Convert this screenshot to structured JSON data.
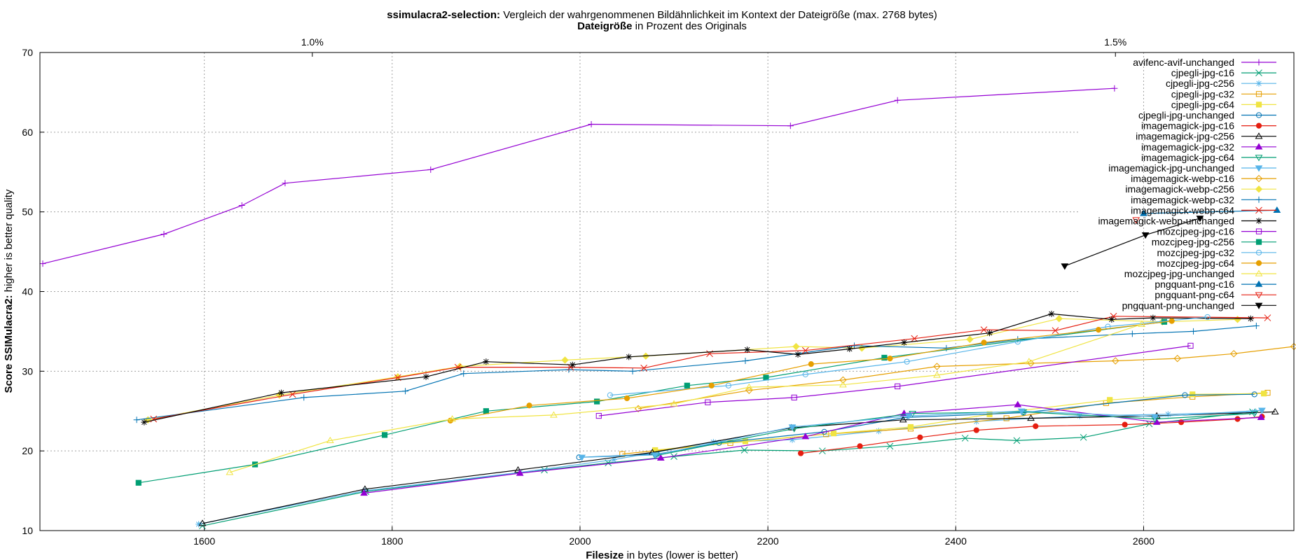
{
  "chart_data": {
    "type": "line",
    "title_bold": "ssimulacra2-selection:",
    "title_rest": " Vergleich der wahrgenommenen Bildähnlichkeit im Kontext der Dateigröße (max. 2768 bytes)",
    "subtitle_bold": "Dateigröße",
    "subtitle_rest": " in Prozent des Originals",
    "xlabel_bold": "Filesize",
    "xlabel_rest": " in bytes (lower is better)",
    "ylabel_bold": "Score SSIMulacra2:",
    "ylabel_rest": " higher is better quality",
    "xlim": [
      1425,
      2760
    ],
    "ylim": [
      10,
      70
    ],
    "xticks": [
      1600,
      1800,
      2000,
      2200,
      2400,
      2600
    ],
    "yticks": [
      10,
      20,
      30,
      40,
      50,
      60,
      70
    ],
    "x2ticks": [
      {
        "x": 1715,
        "label": "1.0%"
      },
      {
        "x": 2570,
        "label": "1.5%"
      }
    ],
    "grid": true,
    "legend_position": "top-right",
    "series": [
      {
        "name": "avifenc-avif-unchanged",
        "color": "#9400d3",
        "marker": "plus",
        "points": [
          [
            1428,
            43.5
          ],
          [
            1557,
            47.2
          ],
          [
            1640,
            50.8
          ],
          [
            1686,
            53.6
          ],
          [
            1841,
            55.3
          ],
          [
            2012,
            61.0
          ],
          [
            2224,
            60.8
          ],
          [
            2338,
            64.0
          ],
          [
            2569,
            65.5
          ]
        ]
      },
      {
        "name": "cjpegli-jpg-c16",
        "color": "#009e73",
        "marker": "x",
        "points": [
          [
            1598,
            10.6
          ],
          [
            1772,
            14.9
          ],
          [
            1962,
            17.6
          ],
          [
            2030,
            18.5
          ],
          [
            2100,
            19.3
          ],
          [
            2175,
            20.1
          ],
          [
            2258,
            20.0
          ],
          [
            2330,
            20.6
          ],
          [
            2410,
            21.6
          ],
          [
            2465,
            21.3
          ],
          [
            2536,
            21.7
          ],
          [
            2606,
            23.4
          ],
          [
            2716,
            24.9
          ]
        ]
      },
      {
        "name": "cjpegli-jpg-c256",
        "color": "#56b4e9",
        "marker": "star",
        "points": [
          [
            1594,
            10.8
          ],
          [
            1771,
            15.0
          ],
          [
            1936,
            17.3
          ],
          [
            2036,
            18.9
          ],
          [
            2142,
            21.1
          ],
          [
            2226,
            21.4
          ],
          [
            2318,
            22.5
          ],
          [
            2422,
            23.7
          ],
          [
            2532,
            24.4
          ],
          [
            2626,
            24.6
          ],
          [
            2718,
            24.9
          ]
        ]
      },
      {
        "name": "cjpegli-jpg-c32",
        "color": "#e69f00",
        "marker": "square-open",
        "points": [
          [
            2045,
            19.6
          ],
          [
            2160,
            21.0
          ],
          [
            2262,
            22.1
          ],
          [
            2352,
            22.8
          ],
          [
            2454,
            24.1
          ],
          [
            2560,
            26.0
          ],
          [
            2652,
            26.8
          ],
          [
            2732,
            27.3
          ]
        ]
      },
      {
        "name": "cjpegli-jpg-c64",
        "color": "#f0e442",
        "marker": "square",
        "points": [
          [
            2080,
            20.1
          ],
          [
            2176,
            21.2
          ],
          [
            2270,
            22.2
          ],
          [
            2352,
            23.0
          ],
          [
            2436,
            24.6
          ],
          [
            2564,
            26.4
          ],
          [
            2652,
            27.1
          ],
          [
            2728,
            27.2
          ]
        ]
      },
      {
        "name": "cjpegli-jpg-unchanged",
        "color": "#0072b2",
        "marker": "circle-open",
        "points": [
          [
            1999,
            19.2
          ],
          [
            2082,
            19.6
          ],
          [
            2148,
            21.0
          ],
          [
            2260,
            22.4
          ],
          [
            2346,
            24.2
          ],
          [
            2472,
            24.8
          ],
          [
            2644,
            27.0
          ],
          [
            2718,
            27.1
          ]
        ]
      },
      {
        "name": "imagemagick-jpg-c16",
        "color": "#e51e10",
        "marker": "circle",
        "points": [
          [
            2235,
            19.7
          ],
          [
            2298,
            20.6
          ],
          [
            2362,
            21.7
          ],
          [
            2422,
            22.6
          ],
          [
            2485,
            23.1
          ],
          [
            2580,
            23.3
          ],
          [
            2640,
            23.6
          ],
          [
            2700,
            24.0
          ],
          [
            2726,
            24.3
          ]
        ]
      },
      {
        "name": "imagemagick-jpg-c256",
        "color": "#000000",
        "marker": "tri-open",
        "points": [
          [
            1598,
            10.9
          ],
          [
            1771,
            15.2
          ],
          [
            1934,
            17.6
          ],
          [
            2077,
            19.8
          ],
          [
            2225,
            22.9
          ],
          [
            2344,
            23.9
          ],
          [
            2480,
            24.1
          ],
          [
            2614,
            24.4
          ],
          [
            2740,
            24.9
          ]
        ]
      },
      {
        "name": "imagemagick-jpg-c32",
        "color": "#9400d3",
        "marker": "tri",
        "points": [
          [
            1770,
            14.7
          ],
          [
            1936,
            17.2
          ],
          [
            2086,
            19.1
          ],
          [
            2240,
            21.8
          ],
          [
            2345,
            24.7
          ],
          [
            2466,
            25.8
          ],
          [
            2614,
            23.6
          ],
          [
            2725,
            24.2
          ]
        ]
      },
      {
        "name": "imagemagick-jpg-c64",
        "color": "#009e73",
        "marker": "tri-down-open",
        "points": [
          [
            2080,
            19.4
          ],
          [
            2228,
            22.8
          ],
          [
            2354,
            24.7
          ],
          [
            2472,
            24.9
          ],
          [
            2612,
            24.0
          ],
          [
            2718,
            24.7
          ]
        ]
      },
      {
        "name": "imagemagick-jpg-unchanged",
        "color": "#56b4e9",
        "marker": "tri-down",
        "points": [
          [
            2002,
            19.2
          ],
          [
            2080,
            19.5
          ],
          [
            2226,
            23.0
          ],
          [
            2350,
            24.4
          ],
          [
            2470,
            25.0
          ],
          [
            2612,
            24.3
          ],
          [
            2726,
            25.1
          ]
        ]
      },
      {
        "name": "imagemagick-webp-c16",
        "color": "#e69f00",
        "marker": "diamond-open",
        "points": [
          [
            2062,
            25.3
          ],
          [
            2180,
            27.6
          ],
          [
            2280,
            28.9
          ],
          [
            2380,
            30.6
          ],
          [
            2480,
            31.0
          ],
          [
            2570,
            31.3
          ],
          [
            2636,
            31.6
          ],
          [
            2696,
            32.2
          ],
          [
            2760,
            33.1
          ]
        ]
      },
      {
        "name": "imagemagick-webp-c256",
        "color": "#f0e442",
        "marker": "diamond",
        "points": [
          [
            1540,
            23.9
          ],
          [
            1680,
            27.0
          ],
          [
            1806,
            29.3
          ],
          [
            1872,
            30.6
          ],
          [
            1984,
            31.4
          ],
          [
            2070,
            31.9
          ],
          [
            2230,
            33.1
          ],
          [
            2300,
            32.9
          ],
          [
            2415,
            34.0
          ],
          [
            2510,
            36.6
          ],
          [
            2620,
            36.2
          ],
          [
            2700,
            36.5
          ]
        ]
      },
      {
        "name": "imagemagick-webp-c32",
        "color": "#0072b2",
        "marker": "plus",
        "points": [
          [
            1528,
            23.9
          ],
          [
            1706,
            26.7
          ],
          [
            1814,
            27.5
          ],
          [
            1876,
            29.7
          ],
          [
            1988,
            30.2
          ],
          [
            2056,
            30.0
          ],
          [
            2176,
            31.3
          ],
          [
            2292,
            33.2
          ],
          [
            2390,
            32.9
          ],
          [
            2466,
            34.0
          ],
          [
            2588,
            34.7
          ],
          [
            2653,
            35.0
          ],
          [
            2720,
            35.7
          ]
        ]
      },
      {
        "name": "imagemagick-webp-c64",
        "color": "#e51e10",
        "marker": "x",
        "points": [
          [
            1546,
            24.0
          ],
          [
            1694,
            27.1
          ],
          [
            1806,
            29.2
          ],
          [
            1870,
            30.5
          ],
          [
            1990,
            30.5
          ],
          [
            2068,
            30.4
          ],
          [
            2138,
            32.2
          ],
          [
            2240,
            32.6
          ],
          [
            2356,
            34.1
          ],
          [
            2430,
            35.2
          ],
          [
            2506,
            35.1
          ],
          [
            2568,
            36.9
          ],
          [
            2732,
            36.7
          ]
        ]
      },
      {
        "name": "imagemagick-webp-unchanged",
        "color": "#000000",
        "marker": "star",
        "points": [
          [
            1536,
            23.6
          ],
          [
            1682,
            27.3
          ],
          [
            1836,
            29.3
          ],
          [
            1900,
            31.2
          ],
          [
            1992,
            30.8
          ],
          [
            2052,
            31.8
          ],
          [
            2178,
            32.7
          ],
          [
            2232,
            32.1
          ],
          [
            2287,
            32.8
          ],
          [
            2345,
            33.6
          ],
          [
            2436,
            34.8
          ],
          [
            2502,
            37.2
          ],
          [
            2566,
            36.5
          ],
          [
            2610,
            36.7
          ],
          [
            2714,
            36.6
          ]
        ]
      },
      {
        "name": "mozcjpeg-jpg-c16",
        "color": "#9400d3",
        "marker": "square-open",
        "points": [
          [
            2020,
            24.4
          ],
          [
            2136,
            26.1
          ],
          [
            2228,
            26.7
          ],
          [
            2338,
            28.1
          ],
          [
            2650,
            33.2
          ]
        ]
      },
      {
        "name": "mozcjpeg-jpg-c256",
        "color": "#009e73",
        "marker": "square",
        "points": [
          [
            1530,
            16.0
          ],
          [
            1654,
            18.3
          ],
          [
            1792,
            22.0
          ],
          [
            1900,
            25.0
          ],
          [
            2018,
            26.2
          ],
          [
            2114,
            28.2
          ],
          [
            2198,
            29.2
          ],
          [
            2324,
            31.7
          ],
          [
            2622,
            36.2
          ]
        ]
      },
      {
        "name": "mozcjpeg-jpg-c32",
        "color": "#56b4e9",
        "marker": "circle-open",
        "points": [
          [
            2032,
            27.0
          ],
          [
            2158,
            28.2
          ],
          [
            2240,
            29.6
          ],
          [
            2348,
            31.2
          ],
          [
            2466,
            33.7
          ],
          [
            2562,
            35.6
          ],
          [
            2668,
            36.8
          ]
        ]
      },
      {
        "name": "mozcjpeg-jpg-c64",
        "color": "#e69f00",
        "marker": "circle",
        "points": [
          [
            1862,
            23.8
          ],
          [
            1946,
            25.7
          ],
          [
            2050,
            26.6
          ],
          [
            2140,
            28.2
          ],
          [
            2246,
            30.9
          ],
          [
            2330,
            31.6
          ],
          [
            2430,
            33.6
          ],
          [
            2552,
            35.2
          ],
          [
            2630,
            36.3
          ]
        ]
      },
      {
        "name": "mozcjpeg-jpg-unchanged",
        "color": "#f0e442",
        "marker": "tri-open",
        "points": [
          [
            1627,
            17.3
          ],
          [
            1734,
            21.3
          ],
          [
            1864,
            24.0
          ],
          [
            1972,
            24.5
          ],
          [
            2100,
            25.9
          ],
          [
            2180,
            28.0
          ],
          [
            2280,
            28.3
          ],
          [
            2380,
            29.5
          ],
          [
            2478,
            31.2
          ],
          [
            2598,
            35.9
          ]
        ]
      },
      {
        "name": "pngquant-png-c16",
        "color": "#0072b2",
        "marker": "tri",
        "points": [
          [
            2600,
            49.8
          ],
          [
            2742,
            50.2
          ]
        ]
      },
      {
        "name": "pngquant-png-c64",
        "color": "#e51e10",
        "marker": "tri-down-open",
        "points": [
          [
            2592,
            49.0
          ]
        ]
      },
      {
        "name": "pngquant-png-unchanged",
        "color": "#000000",
        "marker": "tri-down",
        "points": [
          [
            2516,
            43.2
          ],
          [
            2602,
            47.1
          ],
          [
            2660,
            49.2
          ]
        ]
      }
    ]
  }
}
